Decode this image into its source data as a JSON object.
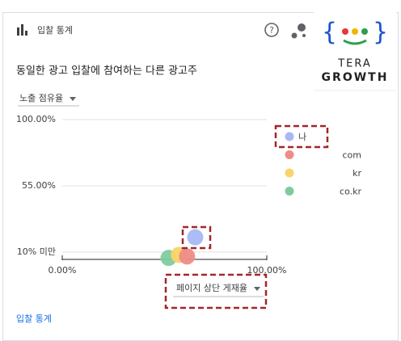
{
  "header": {
    "title": "입찰 통계"
  },
  "logo": {
    "line1": "TERA",
    "line2": "GROWTH"
  },
  "subtitle": "동일한 광고 입찰에 참여하는 다른 광고주",
  "y_selector": "노출 점유율",
  "x_selector": "페이지 상단 게재율",
  "footer_link": "입찰 통계",
  "chart_data": {
    "type": "scatter",
    "xlim": [
      0,
      100
    ],
    "xticks": [
      {
        "value": 0,
        "label": "0.00%"
      },
      {
        "value": 100,
        "label": "100.00%"
      }
    ],
    "ylim": [
      5,
      100
    ],
    "yticks": [
      {
        "value": 10,
        "label": "10% 미만"
      },
      {
        "value": 55,
        "label": "55.00%"
      },
      {
        "value": 100,
        "label": "100.00%"
      }
    ],
    "grid": true,
    "series": [
      {
        "name": "나",
        "color": "#a7b9f3",
        "x": [
          65
        ],
        "values": [
          20
        ]
      },
      {
        "name": "com",
        "color": "#ee8c86",
        "x": [
          61
        ],
        "values": [
          7
        ]
      },
      {
        "name": "kr",
        "color": "#f9d46a",
        "x": [
          57
        ],
        "values": [
          8
        ]
      },
      {
        "name": "co.kr",
        "color": "#7fcb9f",
        "x": [
          52
        ],
        "values": [
          6
        ]
      }
    ]
  }
}
